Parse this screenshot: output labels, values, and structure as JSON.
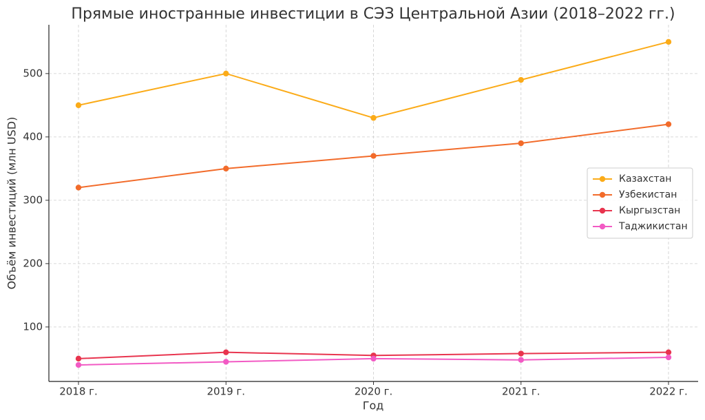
{
  "chart_data": {
    "type": "line",
    "title": "Прямые иностранные инвестиции в СЭЗ Центральной Азии (2018–2022 гг.)",
    "x_label": "Год",
    "y_label": "Объём инвестиций (млн USD)",
    "categories": [
      "2018 г.",
      "2019 г.",
      "2020 г.",
      "2021 г.",
      "2022 г."
    ],
    "series": [
      {
        "name": "Казахстан",
        "color": "#fbab18",
        "values": [
          450,
          500,
          430,
          490,
          550
        ]
      },
      {
        "name": "Узбекистан",
        "color": "#f26b2a",
        "values": [
          320,
          350,
          370,
          390,
          420
        ]
      },
      {
        "name": "Кыргызстан",
        "color": "#e8344e",
        "values": [
          50,
          60,
          55,
          58,
          60
        ]
      },
      {
        "name": "Таджикистан",
        "color": "#f25ac4",
        "values": [
          40,
          45,
          50,
          48,
          52
        ]
      }
    ],
    "ylim": [
      14,
      577
    ],
    "yticks": [
      100,
      200,
      300,
      400,
      500
    ],
    "grid": true,
    "legend": "center right"
  }
}
